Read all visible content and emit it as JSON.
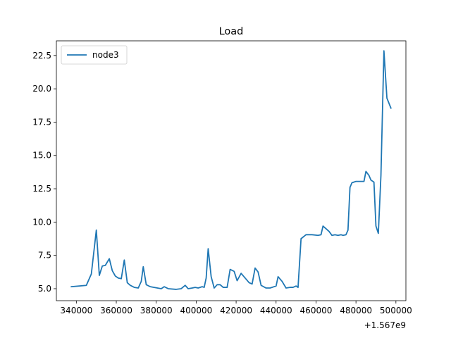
{
  "chart_data": {
    "type": "line",
    "title": "Load",
    "xlabel": "",
    "ylabel": "",
    "x_offset_label": "+1.567e9",
    "xlim": [
      330000,
      505000
    ],
    "ylim": [
      4.1,
      23.6
    ],
    "x_ticks": [
      340000,
      360000,
      380000,
      400000,
      420000,
      440000,
      460000,
      480000,
      500000
    ],
    "x_tick_labels": [
      "340000",
      "360000",
      "380000",
      "400000",
      "420000",
      "440000",
      "460000",
      "480000",
      "500000"
    ],
    "y_ticks": [
      5.0,
      7.5,
      10.0,
      12.5,
      15.0,
      17.5,
      20.0,
      22.5
    ],
    "y_tick_labels": [
      "5.0",
      "7.5",
      "10.0",
      "12.5",
      "15.0",
      "17.5",
      "20.0",
      "22.5"
    ],
    "grid": false,
    "legend": "top-left",
    "series": [
      {
        "name": "node3",
        "color": "#1f77b4",
        "points": [
          [
            337500,
            5.15
          ],
          [
            345000,
            5.25
          ],
          [
            347500,
            6.1
          ],
          [
            350000,
            9.4
          ],
          [
            351500,
            6.0
          ],
          [
            353000,
            6.7
          ],
          [
            354500,
            6.75
          ],
          [
            356500,
            7.25
          ],
          [
            358000,
            6.35
          ],
          [
            359500,
            5.95
          ],
          [
            361000,
            5.8
          ],
          [
            362500,
            5.75
          ],
          [
            364000,
            7.15
          ],
          [
            365500,
            5.45
          ],
          [
            367000,
            5.25
          ],
          [
            369000,
            5.1
          ],
          [
            371000,
            5.05
          ],
          [
            372500,
            5.55
          ],
          [
            373500,
            6.65
          ],
          [
            375000,
            5.3
          ],
          [
            377000,
            5.15
          ],
          [
            382500,
            5.0
          ],
          [
            384000,
            5.15
          ],
          [
            386000,
            5.0
          ],
          [
            390000,
            4.95
          ],
          [
            392500,
            5.0
          ],
          [
            394500,
            5.25
          ],
          [
            396000,
            5.0
          ],
          [
            398000,
            5.05
          ],
          [
            399500,
            5.1
          ],
          [
            401000,
            5.05
          ],
          [
            403000,
            5.15
          ],
          [
            404000,
            5.1
          ],
          [
            405000,
            5.8
          ],
          [
            406000,
            8.0
          ],
          [
            407500,
            5.9
          ],
          [
            409000,
            5.05
          ],
          [
            410500,
            5.3
          ],
          [
            412000,
            5.3
          ],
          [
            413500,
            5.1
          ],
          [
            415500,
            5.1
          ],
          [
            417000,
            6.45
          ],
          [
            419000,
            6.3
          ],
          [
            420500,
            5.6
          ],
          [
            422500,
            6.15
          ],
          [
            424500,
            5.8
          ],
          [
            426500,
            5.45
          ],
          [
            428000,
            5.35
          ],
          [
            429500,
            6.55
          ],
          [
            431000,
            6.25
          ],
          [
            432500,
            5.25
          ],
          [
            435000,
            5.05
          ],
          [
            437000,
            5.05
          ],
          [
            440000,
            5.2
          ],
          [
            441000,
            5.9
          ],
          [
            443000,
            5.55
          ],
          [
            445000,
            5.05
          ],
          [
            447000,
            5.1
          ],
          [
            448500,
            5.1
          ],
          [
            450000,
            5.2
          ],
          [
            451000,
            5.1
          ],
          [
            452500,
            8.75
          ],
          [
            455000,
            9.05
          ],
          [
            458000,
            9.05
          ],
          [
            461000,
            9.0
          ],
          [
            462500,
            9.05
          ],
          [
            463500,
            9.7
          ],
          [
            465000,
            9.5
          ],
          [
            466500,
            9.3
          ],
          [
            468000,
            9.0
          ],
          [
            469500,
            9.05
          ],
          [
            471000,
            9.0
          ],
          [
            472500,
            9.05
          ],
          [
            473500,
            9.0
          ],
          [
            475000,
            9.05
          ],
          [
            476000,
            9.4
          ],
          [
            477000,
            12.6
          ],
          [
            478000,
            12.95
          ],
          [
            480000,
            13.05
          ],
          [
            482500,
            13.05
          ],
          [
            484000,
            13.05
          ],
          [
            485000,
            13.8
          ],
          [
            486500,
            13.5
          ],
          [
            487500,
            13.15
          ],
          [
            489000,
            13.0
          ],
          [
            490000,
            9.7
          ],
          [
            491200,
            9.15
          ],
          [
            492500,
            13.5
          ],
          [
            494000,
            22.85
          ],
          [
            495500,
            19.3
          ],
          [
            497500,
            18.55
          ]
        ]
      }
    ]
  }
}
